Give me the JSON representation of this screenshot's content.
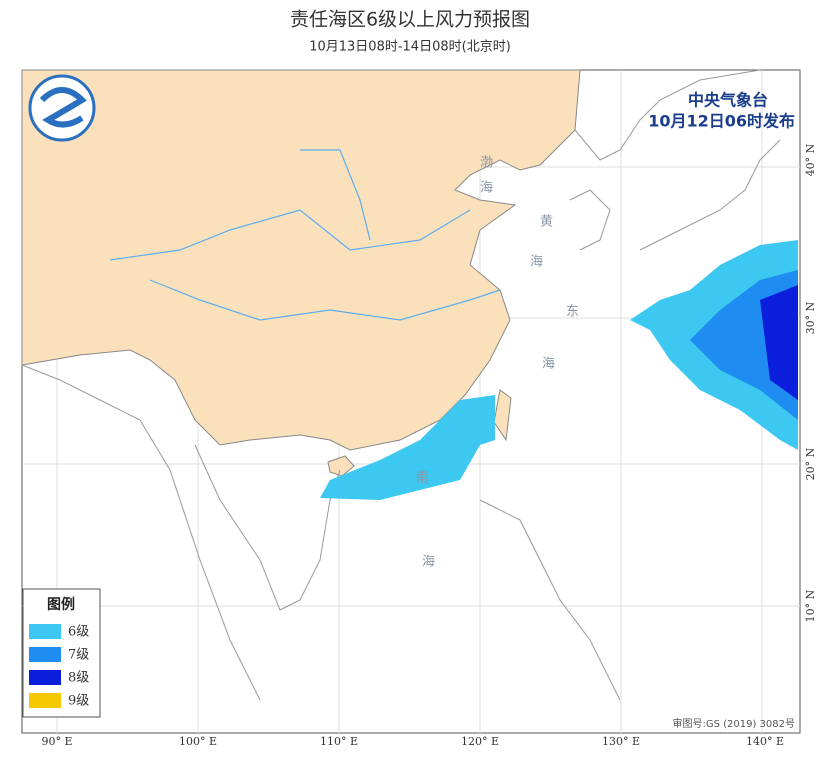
{
  "header": {
    "title": "责任海区6级以上风力预报图",
    "subtitle": "10月13日08时-14日08时(北京时)",
    "publisher": "中央气象台",
    "issued": "10月12日06时发布"
  },
  "legend": {
    "title": "图例",
    "items": [
      {
        "label": "6级",
        "color": "#3cc8f0"
      },
      {
        "label": "7级",
        "color": "#1e8cf0"
      },
      {
        "label": "8级",
        "color": "#0a1edc"
      },
      {
        "label": "9级",
        "color": "#f5c800"
      }
    ]
  },
  "axes": {
    "lon": [
      "90° E",
      "100° E",
      "110° E",
      "120° E",
      "130° E",
      "140° E"
    ],
    "lat": [
      "40° N",
      "30° N",
      "20° N",
      "10° N"
    ]
  },
  "seas": [
    [
      "渤",
      "海"
    ],
    [
      "黄",
      "海"
    ],
    [
      "东",
      "海"
    ],
    [
      "南",
      "海"
    ]
  ],
  "footer": {
    "approval": "审图号:GS (2019) 3082号"
  }
}
